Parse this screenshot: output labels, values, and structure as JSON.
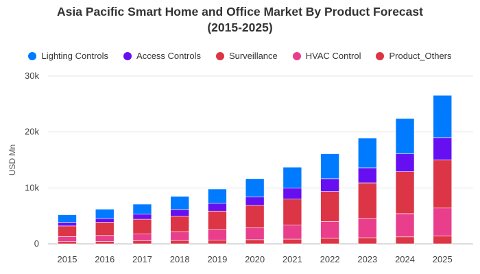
{
  "chart_data": {
    "type": "bar",
    "stacked": true,
    "title_line1": "Asia Pacific Smart Home and Office Market By Product Forecast",
    "title_line2": "(2015-2025)",
    "ylabel": "USD Mn",
    "xlabel": "",
    "ylim": [
      0,
      30000
    ],
    "yticks": [
      0,
      10000,
      20000,
      30000
    ],
    "ytick_labels": [
      "0",
      "10k",
      "20k",
      "30k"
    ],
    "categories": [
      "2015",
      "2016",
      "2017",
      "2018",
      "2019",
      "2020",
      "2021",
      "2022",
      "2023",
      "2024",
      "2025"
    ],
    "series": [
      {
        "name": "Product_Others",
        "color": "#dc3545",
        "values": [
          400,
          450,
          550,
          600,
          650,
          750,
          850,
          1000,
          1100,
          1250,
          1400
        ]
      },
      {
        "name": "HVAC Control",
        "color": "#e83e8c",
        "values": [
          900,
          1050,
          1200,
          1550,
          1900,
          2100,
          2500,
          3000,
          3450,
          4150,
          5000
        ]
      },
      {
        "name": "Surveillance",
        "color": "#dc3545",
        "values": [
          1900,
          2350,
          2650,
          2800,
          3300,
          4050,
          4650,
          5350,
          6350,
          7500,
          8600
        ]
      },
      {
        "name": "Access Controls",
        "color": "#6610f2",
        "values": [
          650,
          700,
          950,
          1200,
          1400,
          1500,
          2000,
          2300,
          2700,
          3200,
          4000
        ]
      },
      {
        "name": "Lighting Controls",
        "color": "#007bff",
        "values": [
          1350,
          1650,
          1750,
          2350,
          2550,
          3250,
          3700,
          4450,
          5300,
          6300,
          7550
        ]
      }
    ],
    "legend": [
      {
        "label": "Lighting Controls",
        "color": "#007bff"
      },
      {
        "label": "Access Controls",
        "color": "#6610f2"
      },
      {
        "label": "Surveillance",
        "color": "#dc3545"
      },
      {
        "label": "HVAC Control",
        "color": "#e83e8c"
      },
      {
        "label": "Product_Others",
        "color": "#dc3545"
      }
    ],
    "legend_position": "top",
    "grid": true
  }
}
